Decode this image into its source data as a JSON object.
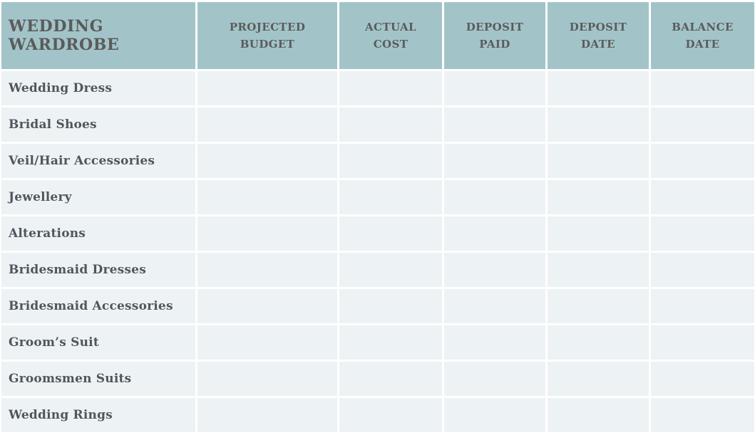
{
  "table": {
    "title": "WEDDING\nWARDROBE",
    "columns": [
      {
        "label": "PROJECTED\nBUDGET"
      },
      {
        "label": "ACTUAL\nCOST"
      },
      {
        "label": "DEPOSIT\nPAID"
      },
      {
        "label": "DEPOSIT\nDATE"
      },
      {
        "label": "BALANCE\nDATE"
      }
    ],
    "rows": [
      {
        "label": "Wedding Dress",
        "cells": [
          "",
          "",
          "",
          "",
          ""
        ]
      },
      {
        "label": "Bridal Shoes",
        "cells": [
          "",
          "",
          "",
          "",
          ""
        ]
      },
      {
        "label": "Veil/Hair Accessories",
        "cells": [
          "",
          "",
          "",
          "",
          ""
        ]
      },
      {
        "label": "Jewellery",
        "cells": [
          "",
          "",
          "",
          "",
          ""
        ]
      },
      {
        "label": "Alterations",
        "cells": [
          "",
          "",
          "",
          "",
          ""
        ]
      },
      {
        "label": "Bridesmaid Dresses",
        "cells": [
          "",
          "",
          "",
          "",
          ""
        ]
      },
      {
        "label": "Bridesmaid Accessories",
        "cells": [
          "",
          "",
          "",
          "",
          ""
        ]
      },
      {
        "label": "Groom’s Suit",
        "cells": [
          "",
          "",
          "",
          "",
          ""
        ]
      },
      {
        "label": "Groomsmen Suits",
        "cells": [
          "",
          "",
          "",
          "",
          ""
        ]
      },
      {
        "label": "Wedding Rings",
        "cells": [
          "",
          "",
          "",
          "",
          ""
        ]
      }
    ],
    "colors": {
      "header_bg": "#a2c4c9",
      "row_bg": "#edf2f4",
      "header_text": "#5b5b5b",
      "row_text": "#50565c",
      "gutter": "#ffffff"
    }
  }
}
